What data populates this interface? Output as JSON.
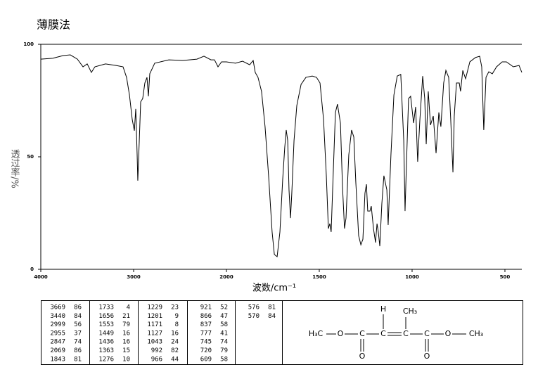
{
  "chart_data": {
    "type": "line",
    "title": "薄膜法",
    "x_label": "波数/cm⁻¹",
    "y_label": "透过率/%",
    "xlim": [
      4000,
      409
    ],
    "ylim": [
      0,
      100
    ],
    "xticks": [
      4000,
      3000,
      2000,
      1500,
      1000,
      500
    ],
    "yticks": [
      0,
      50,
      100
    ],
    "x_scale_change": {
      "at": 2000,
      "factor": 2
    },
    "color": "#000000",
    "x": [
      4000,
      3871,
      3758,
      3682,
      3606,
      3545,
      3500,
      3455,
      3417,
      3303,
      3189,
      3114,
      3076,
      3045,
      3015,
      2992,
      2977,
      2962,
      2955,
      2939,
      2924,
      2902,
      2879,
      2856,
      2841,
      2826,
      2773,
      2621,
      2470,
      2318,
      2242,
      2167,
      2129,
      2091,
      2053,
      2000,
      1951,
      1913,
      1875,
      1856,
      1845,
      1830,
      1811,
      1792,
      1773,
      1754,
      1742,
      1727,
      1712,
      1697,
      1686,
      1678,
      1670,
      1663,
      1655,
      1648,
      1636,
      1621,
      1598,
      1572,
      1538,
      1515,
      1496,
      1477,
      1462,
      1451,
      1443,
      1436,
      1424,
      1413,
      1402,
      1386,
      1375,
      1364,
      1356,
      1341,
      1326,
      1314,
      1303,
      1288,
      1276,
      1265,
      1254,
      1246,
      1239,
      1227,
      1220,
      1208,
      1197,
      1189,
      1182,
      1174,
      1163,
      1152,
      1136,
      1129,
      1114,
      1098,
      1080,
      1061,
      1045,
      1038,
      1030,
      1019,
      1008,
      992,
      981,
      970,
      958,
      943,
      932,
      924,
      913,
      901,
      886,
      871,
      856,
      845,
      830,
      818,
      803,
      792,
      780,
      773,
      761,
      746,
      739,
      727,
      712,
      689,
      659,
      636,
      625,
      614,
      602,
      587,
      568,
      545,
      515,
      492,
      455,
      424,
      409
    ],
    "values": [
      93.4,
      93.8,
      95.0,
      95.3,
      93.4,
      90.0,
      91.3,
      87.5,
      90.0,
      91.3,
      90.6,
      90.0,
      85.3,
      77.5,
      66.6,
      61.6,
      71.3,
      50.9,
      39.4,
      57.2,
      74.4,
      75.9,
      82.8,
      85.3,
      76.9,
      86.9,
      91.6,
      93.1,
      92.8,
      93.4,
      94.7,
      93.1,
      93.1,
      90.0,
      92.2,
      92.2,
      91.6,
      92.5,
      90.9,
      92.8,
      87.5,
      85.3,
      79.1,
      63.4,
      41.6,
      16.6,
      6.6,
      5.6,
      16.6,
      40.0,
      54.1,
      61.9,
      57.2,
      35.3,
      22.8,
      33.8,
      57.2,
      72.8,
      82.2,
      85.3,
      85.9,
      85.3,
      82.8,
      66.6,
      41.6,
      18.1,
      20.3,
      16.6,
      44.7,
      69.7,
      73.4,
      65.0,
      36.9,
      18.1,
      22.8,
      50.9,
      61.9,
      58.8,
      38.4,
      15.0,
      10.9,
      13.4,
      33.8,
      37.8,
      25.9,
      25.9,
      28.1,
      18.1,
      11.9,
      20.3,
      16.6,
      10.3,
      29.1,
      41.6,
      35.3,
      19.7,
      50.9,
      77.5,
      85.9,
      86.6,
      57.2,
      25.9,
      47.8,
      75.9,
      76.9,
      65.0,
      72.2,
      47.8,
      66.6,
      85.9,
      75.9,
      55.6,
      79.1,
      64.1,
      68.1,
      51.6,
      69.7,
      63.4,
      82.8,
      88.4,
      85.3,
      66.6,
      43.1,
      68.1,
      82.8,
      82.8,
      79.1,
      88.4,
      84.7,
      92.2,
      94.1,
      94.7,
      90.0,
      61.9,
      85.3,
      87.8,
      86.9,
      90.0,
      92.2,
      92.2,
      90.0,
      90.6,
      87.5
    ]
  },
  "peak_table": [
    [
      [
        3669,
        86
      ],
      [
        3440,
        84
      ],
      [
        2999,
        56
      ],
      [
        2955,
        37
      ],
      [
        2847,
        74
      ],
      [
        2069,
        86
      ],
      [
        1843,
        81
      ]
    ],
    [
      [
        1733,
        4
      ],
      [
        1656,
        21
      ],
      [
        1553,
        79
      ],
      [
        1449,
        16
      ],
      [
        1436,
        16
      ],
      [
        1363,
        15
      ],
      [
        1276,
        10
      ]
    ],
    [
      [
        1229,
        23
      ],
      [
        1201,
        9
      ],
      [
        1171,
        8
      ],
      [
        1127,
        16
      ],
      [
        1043,
        24
      ],
      [
        992,
        82
      ],
      [
        966,
        44
      ]
    ],
    [
      [
        921,
        52
      ],
      [
        866,
        47
      ],
      [
        837,
        58
      ],
      [
        777,
        41
      ],
      [
        745,
        74
      ],
      [
        720,
        79
      ],
      [
        609,
        58
      ]
    ],
    [
      [
        576,
        81
      ],
      [
        570,
        84
      ]
    ]
  ],
  "structure": {
    "atoms": [
      "H",
      "CH₃",
      "H₃C",
      "O",
      "C",
      "C",
      "C",
      "C",
      "O",
      "CH₃",
      "O",
      "O"
    ]
  }
}
